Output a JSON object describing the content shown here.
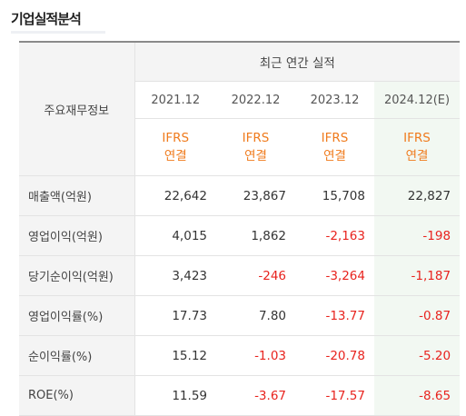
{
  "section_title": "기업실적분석",
  "table": {
    "corner_label": "주요재무정보",
    "group_header": "최근 연간 실적",
    "years": [
      "2021.12",
      "2022.12",
      "2023.12",
      "2024.12(E)"
    ],
    "basis": [
      {
        "line1": "IFRS",
        "line2": "연결"
      },
      {
        "line1": "IFRS",
        "line2": "연결"
      },
      {
        "line1": "IFRS",
        "line2": "연결"
      },
      {
        "line1": "IFRS",
        "line2": "연결"
      }
    ],
    "rows": [
      {
        "label": "매출액(억원)",
        "values": [
          "22,642",
          "23,867",
          "15,708",
          "22,827"
        ]
      },
      {
        "label": "영업이익(억원)",
        "values": [
          "4,015",
          "1,862",
          "-2,163",
          "-198"
        ]
      },
      {
        "label": "당기순이익(억원)",
        "values": [
          "3,423",
          "-246",
          "-3,264",
          "-1,187"
        ]
      },
      {
        "label": "영업이익률(%)",
        "values": [
          "17.73",
          "7.80",
          "-13.77",
          "-0.87"
        ]
      },
      {
        "label": "순이익률(%)",
        "values": [
          "15.12",
          "-1.03",
          "-20.78",
          "-5.20"
        ]
      },
      {
        "label": "ROE(%)",
        "values": [
          "11.59",
          "-3.67",
          "-17.57",
          "-8.65"
        ]
      }
    ]
  },
  "colors": {
    "negative": "#e8231e",
    "ifrs_label": "#f07b1d",
    "estimate_column_bg": "#f2f8f2",
    "header_bg": "#f4f4f4"
  }
}
